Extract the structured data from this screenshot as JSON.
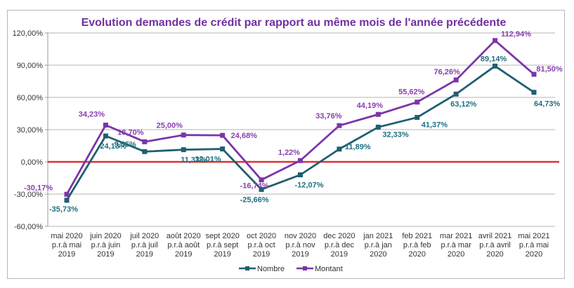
{
  "chart_data": {
    "type": "line",
    "title": "Evolution demandes de crédit par rapport au même mois de l'année précédente",
    "xlabel": "",
    "ylabel": "",
    "ylim": [
      -60,
      120
    ],
    "yticks": [
      -60,
      -30,
      0,
      30,
      60,
      90,
      120
    ],
    "ytick_labels": [
      "-60,00%",
      "-30,00%",
      "0,00%",
      "30,00%",
      "60,00%",
      "90,00%",
      "120,00%"
    ],
    "grid": true,
    "legend_position": "bottom",
    "reference_line": {
      "value": 0,
      "color": "#e03030"
    },
    "categories": [
      [
        "mai 2020",
        "p.r.à mai",
        "2019"
      ],
      [
        "juin 2020",
        "p.r.à juin",
        "2019"
      ],
      [
        "juil 2020",
        "p.r.à juil",
        "2019"
      ],
      [
        "août 2020",
        "p.r.à août",
        "2019"
      ],
      [
        "sept 2020",
        "p.r.à sept",
        "2019"
      ],
      [
        "oct 2020",
        "p.r.à oct",
        "2019"
      ],
      [
        "nov 2020",
        "p.r.à nov",
        "2019"
      ],
      [
        "dec 2020",
        "p.r.à dec",
        "2019"
      ],
      [
        "jan 2021",
        "p.r.à jan",
        "2020"
      ],
      [
        "feb 2021",
        "p.r.à feb",
        "2020"
      ],
      [
        "mar 2021",
        "p.r.à mar",
        "2020"
      ],
      [
        "avril 2021",
        "p.r.à avril",
        "2020"
      ],
      [
        "mai 2021",
        "p.r.à mai",
        "2020"
      ]
    ],
    "series": [
      {
        "name": "Nombre",
        "color": "#1f5f70",
        "values": [
          -35.73,
          24.13,
          9.55,
          11.33,
          12.01,
          -25.66,
          -12.07,
          11.89,
          32.33,
          41.37,
          63.12,
          89.14,
          64.73
        ],
        "labels": [
          "-35,73%",
          "24,13%",
          "9,55%",
          "11,33%",
          "12,01%",
          "-25,66%",
          "-12,07%",
          "11,89%",
          "32,33%",
          "41,37%",
          "63,12%",
          "89,14%",
          "64,73%"
        ]
      },
      {
        "name": "Montant",
        "color": "#7b35a8",
        "values": [
          -30.17,
          34.23,
          18.7,
          25.0,
          24.68,
          -16.74,
          1.22,
          33.76,
          44.19,
          55.62,
          76.26,
          112.94,
          81.5
        ],
        "labels": [
          "-30,17%",
          "34,23%",
          "18,70%",
          "25,00%",
          "24,68%",
          "-16,74%",
          "1,22%",
          "33,76%",
          "44,19%",
          "55,62%",
          "76,26%",
          "112,94%",
          "81,50%"
        ]
      }
    ]
  }
}
